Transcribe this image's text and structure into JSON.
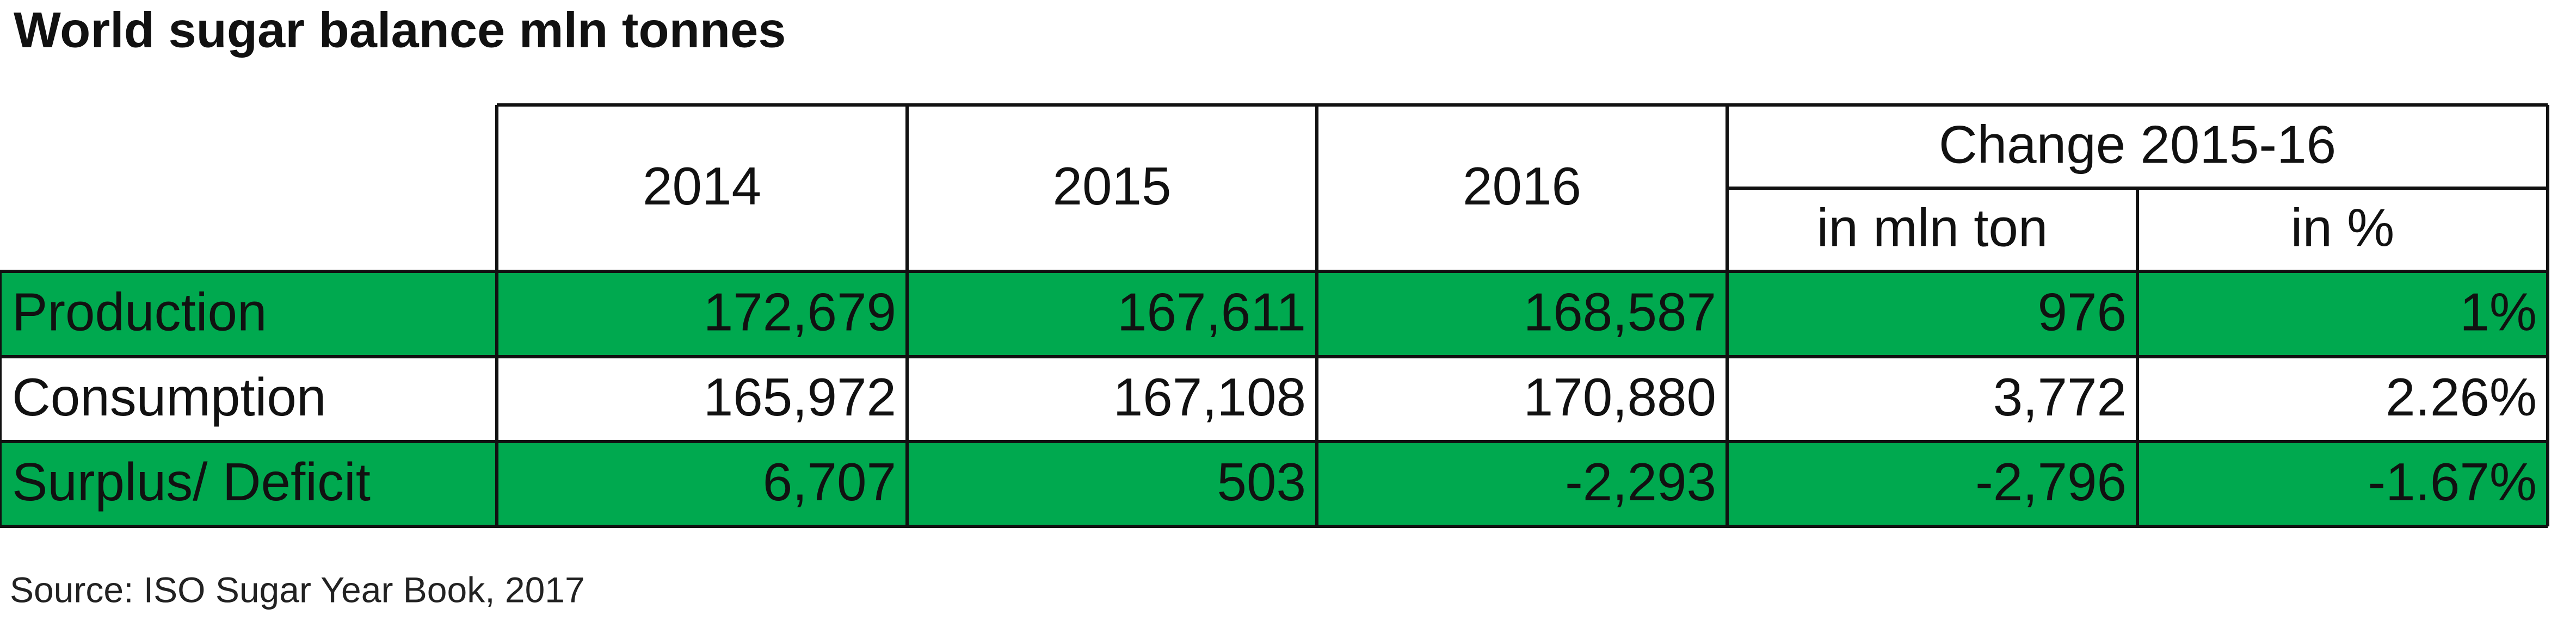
{
  "title": "World sugar balance mln tonnes",
  "table": {
    "columns": [
      "2014",
      "2015",
      "2016"
    ],
    "group_header": "Change 2015-16",
    "sub_columns": [
      "in mln ton",
      "in %"
    ],
    "rows": [
      [
        "Production",
        "172,679",
        "167,611",
        "168,587",
        "976",
        "1%"
      ],
      [
        "Consumption",
        "165,972",
        "167,108",
        "170,880",
        "3,772",
        "2.26%"
      ],
      [
        "Surplus/ Deficit",
        "6,707",
        "503",
        "-2,293",
        "-2,796",
        "-1.67%"
      ]
    ]
  },
  "source": "Source: ISO Sugar Year Book, 2017"
}
